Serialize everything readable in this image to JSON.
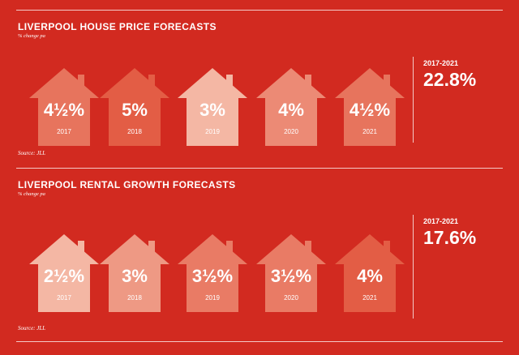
{
  "colors": {
    "background": "#d22a20",
    "text": "#ffffff",
    "house_light": "#f4b7a4",
    "house_mid": "#eb7a61",
    "house_dark": "#e35d45"
  },
  "chart_data": [
    {
      "type": "table",
      "title": "LIVERPOOL HOUSE PRICE FORECASTS",
      "subtitle": "% change pa",
      "source": "Source: JLL",
      "categories": [
        "2017",
        "2018",
        "2019",
        "2020",
        "2021"
      ],
      "labels": [
        "4½%",
        "5%",
        "3%",
        "4%",
        "4½%"
      ],
      "values": [
        4.5,
        5,
        3,
        4,
        4.5
      ],
      "total_label": "2017-2021",
      "total_value": "22.8%"
    },
    {
      "type": "table",
      "title": "LIVERPOOL RENTAL GROWTH FORECASTS",
      "subtitle": "% change pa",
      "source": "Source: JLL",
      "categories": [
        "2017",
        "2018",
        "2019",
        "2020",
        "2021"
      ],
      "labels": [
        "2½%",
        "3%",
        "3½%",
        "3½%",
        "4%"
      ],
      "values": [
        2.5,
        3,
        3.5,
        3.5,
        4
      ],
      "total_label": "2017-2021",
      "total_value": "17.6%"
    }
  ]
}
